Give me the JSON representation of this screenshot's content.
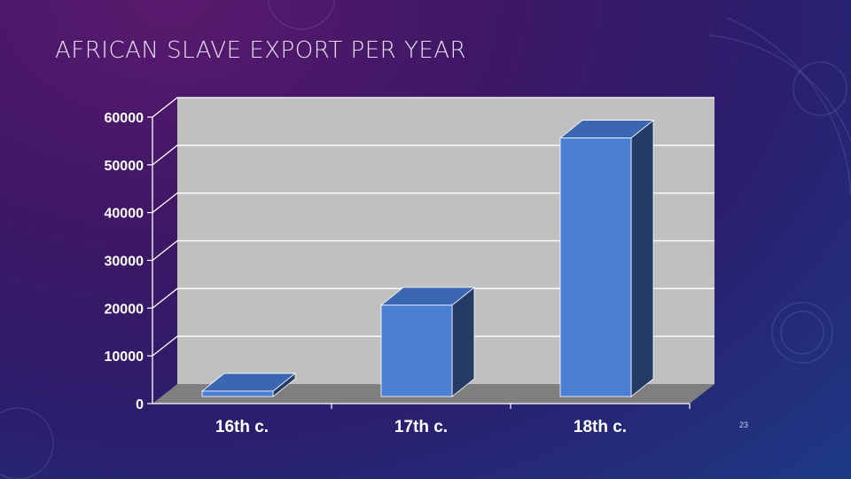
{
  "slide": {
    "title": "AFRICAN SLAVE EXPORT PER YEAR",
    "number": "23"
  },
  "colors": {
    "bar_front": "#4a7fd4",
    "bar_side": "#243b66",
    "bar_top": "#3b66b3",
    "wall": "#c0c0c0",
    "floor": "#7f7f7f",
    "text": "#ffffff"
  },
  "chart_data": {
    "type": "bar",
    "style": "3d",
    "title": "",
    "xlabel": "",
    "ylabel": "",
    "categories": [
      "16th c.",
      "17th c.",
      "18th c."
    ],
    "values": [
      1500,
      19500,
      54500
    ],
    "ylim": [
      0,
      60000
    ],
    "yticks": [
      "0",
      "10000",
      "20000",
      "30000",
      "40000",
      "50000",
      "60000"
    ],
    "grid": true,
    "legend": "none"
  }
}
